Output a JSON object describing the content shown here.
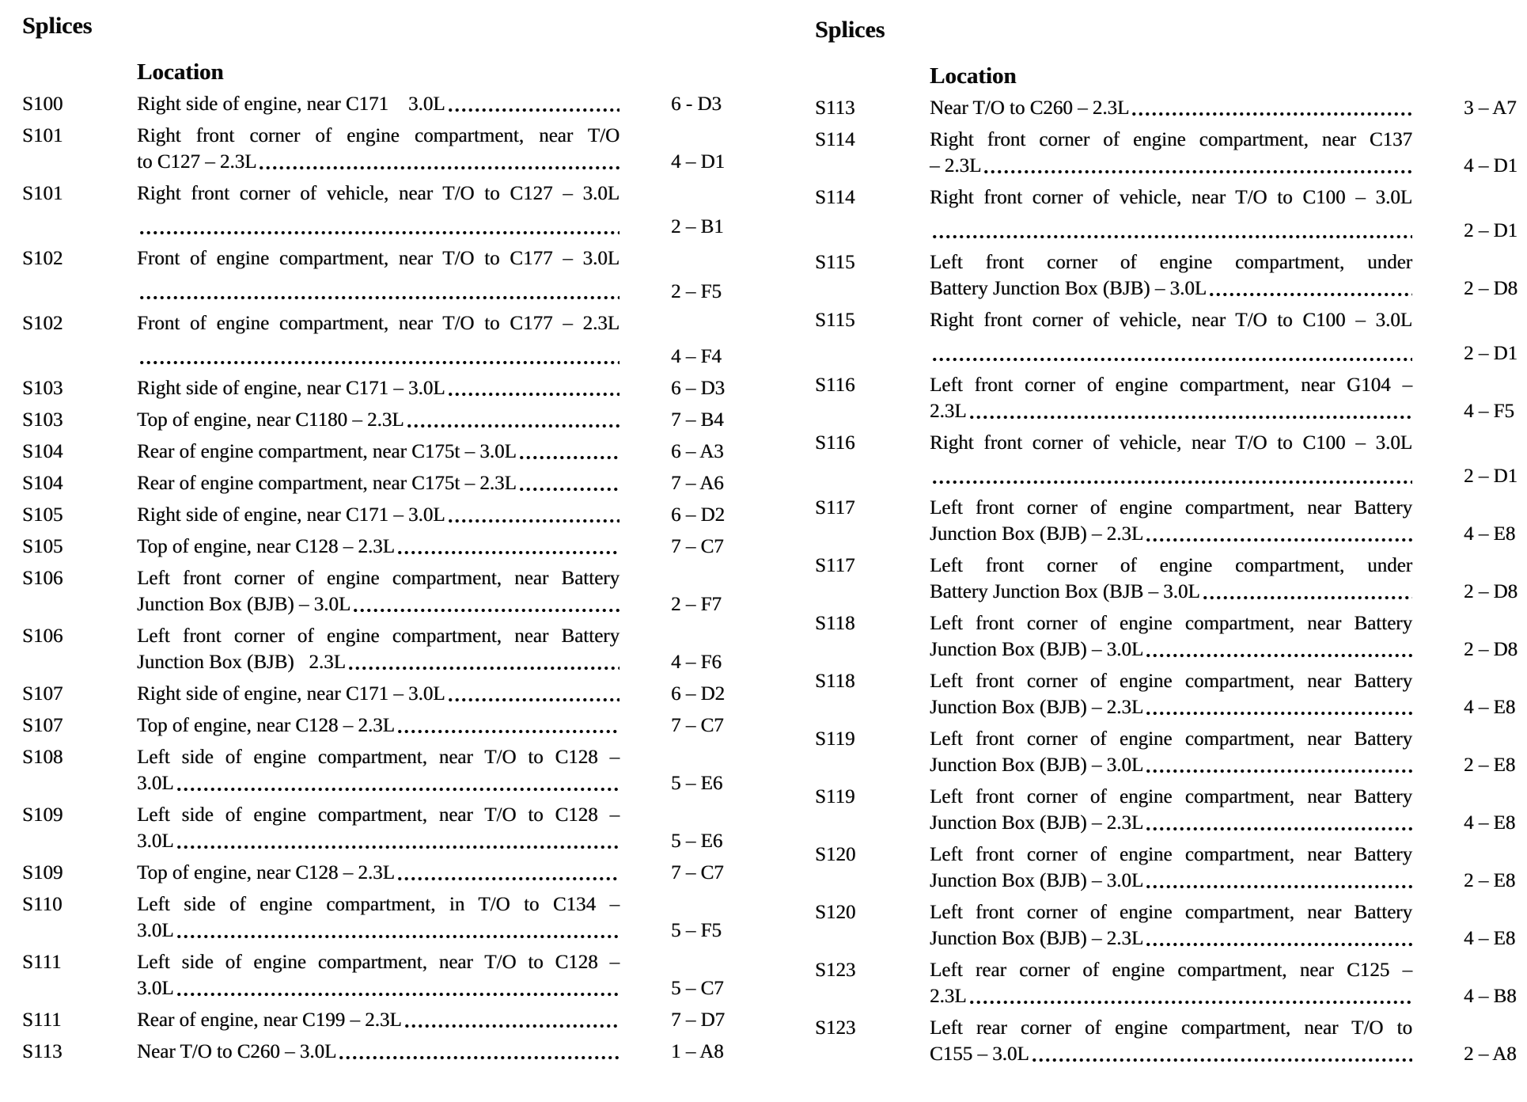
{
  "page": {
    "background": "#ffffff",
    "text_color": "#0a0a0a",
    "columns": [
      {
        "title": "Splices",
        "location_header": "Location",
        "rows": [
          {
            "id": "S100",
            "lines": [
              "Right side of engine, near C171    3.0L"
            ],
            "ref": "6 - D3"
          },
          {
            "id": "S101",
            "lines": [
              "Right front corner of engine compartment, near T/O",
              "to C127 – 2.3L"
            ],
            "ref": "4 – D1"
          },
          {
            "id": "S101",
            "lines": [
              "Right front corner of vehicle, near T/O to C127 – 3.0L",
              ""
            ],
            "ref": "2 – B1"
          },
          {
            "id": "S102",
            "lines": [
              "Front of engine compartment, near T/O to C177 – 3.0L",
              ""
            ],
            "ref": "2 – F5"
          },
          {
            "id": "S102",
            "lines": [
              "Front of engine compartment, near T/O to C177 – 2.3L",
              ""
            ],
            "ref": "4 – F4"
          },
          {
            "id": "S103",
            "lines": [
              "Right side of engine, near C171 – 3.0L"
            ],
            "ref": "6 – D3"
          },
          {
            "id": "S103",
            "lines": [
              "Top of engine, near C1180 – 2.3L"
            ],
            "ref": "7 – B4"
          },
          {
            "id": "S104",
            "lines": [
              "Rear of engine compartment, near C175t – 3.0L"
            ],
            "ref": "6 – A3"
          },
          {
            "id": "S104",
            "lines": [
              "Rear of engine compartment, near C175t – 2.3L"
            ],
            "ref": "7 – A6"
          },
          {
            "id": "S105",
            "lines": [
              "Right side of engine, near C171 – 3.0L"
            ],
            "ref": "6 – D2"
          },
          {
            "id": "S105",
            "lines": [
              "Top of engine, near C128 – 2.3L"
            ],
            "ref": "7 – C7"
          },
          {
            "id": "S106",
            "lines": [
              "Left front corner of engine compartment, near Battery",
              "Junction Box (BJB) – 3.0L"
            ],
            "ref": "2 – F7"
          },
          {
            "id": "S106",
            "lines": [
              "Left front corner of engine compartment, near Battery",
              "Junction Box (BJB)   2.3L"
            ],
            "ref": "4 – F6"
          },
          {
            "id": "S107",
            "lines": [
              "Right side of engine, near C171 – 3.0L"
            ],
            "ref": "6 – D2"
          },
          {
            "id": "S107",
            "lines": [
              "Top of engine, near C128 – 2.3L"
            ],
            "ref": "7 – C7"
          },
          {
            "id": "S108",
            "lines": [
              "Left side of engine compartment, near T/O to C128 –",
              "3.0L"
            ],
            "ref": "5 – E6"
          },
          {
            "id": "S109",
            "lines": [
              "Left side of engine compartment, near T/O to C128 –",
              "3.0L"
            ],
            "ref": "5 – E6"
          },
          {
            "id": "S109",
            "lines": [
              "Top of engine, near C128 – 2.3L"
            ],
            "ref": "7 – C7"
          },
          {
            "id": "S110",
            "lines": [
              "Left side of engine compartment, in T/O to C134 –",
              "3.0L"
            ],
            "ref": "5 – F5"
          },
          {
            "id": "S111",
            "lines": [
              "Left side of engine compartment, near T/O to C128 –",
              "3.0L"
            ],
            "ref": "5 – C7"
          },
          {
            "id": "S111",
            "lines": [
              "Rear of engine, near C199 – 2.3L"
            ],
            "ref": "7 – D7"
          },
          {
            "id": "S113",
            "lines": [
              "Near T/O to C260 – 3.0L"
            ],
            "ref": "1 – A8"
          }
        ]
      },
      {
        "title": "Splices",
        "location_header": "Location",
        "rows": [
          {
            "id": "S113",
            "lines": [
              "Near T/O to C260 – 2.3L"
            ],
            "ref": "3 – A7"
          },
          {
            "id": "S114",
            "lines": [
              "Right front corner of engine compartment, near C137",
              "– 2.3L"
            ],
            "ref": "4 – D1"
          },
          {
            "id": "S114",
            "lines": [
              "Right front corner of vehicle, near T/O to C100 – 3.0L",
              ""
            ],
            "ref": "2 – D1"
          },
          {
            "id": "S115",
            "lines": [
              "Left front corner of engine compartment, under",
              "Battery Junction Box (BJB) – 3.0L"
            ],
            "ref": "2 – D8"
          },
          {
            "id": "S115",
            "lines": [
              "Right front corner of vehicle, near T/O to C100 – 3.0L",
              ""
            ],
            "ref": "2 – D1"
          },
          {
            "id": "S116",
            "lines": [
              "Left front corner of engine compartment, near G104 –",
              "2.3L"
            ],
            "ref": "4 – F5"
          },
          {
            "id": "S116",
            "lines": [
              "Right front corner of vehicle, near T/O to C100 – 3.0L",
              ""
            ],
            "ref": "2 – D1"
          },
          {
            "id": "S117",
            "lines": [
              "Left front corner of engine compartment, near Battery",
              "Junction Box (BJB) – 2.3L"
            ],
            "ref": "4 – E8"
          },
          {
            "id": "S117",
            "lines": [
              "Left front corner of engine compartment, under",
              "Battery Junction Box (BJB – 3.0L"
            ],
            "ref": "2 – D8"
          },
          {
            "id": "S118",
            "lines": [
              "Left front corner of engine compartment, near Battery",
              "Junction Box (BJB) – 3.0L"
            ],
            "ref": "2 – D8"
          },
          {
            "id": "S118",
            "lines": [
              "Left front corner of engine compartment, near Battery",
              "Junction Box (BJB) – 2.3L"
            ],
            "ref": "4 – E8"
          },
          {
            "id": "S119",
            "lines": [
              "Left front corner of engine compartment, near Battery",
              "Junction Box (BJB) – 3.0L"
            ],
            "ref": "2 – E8"
          },
          {
            "id": "S119",
            "lines": [
              "Left front corner of engine compartment, near Battery",
              "Junction Box (BJB) – 2.3L"
            ],
            "ref": "4 – E8"
          },
          {
            "id": "S120",
            "lines": [
              "Left front corner of engine compartment, near Battery",
              "Junction Box (BJB) – 3.0L"
            ],
            "ref": "2 – E8"
          },
          {
            "id": "S120",
            "lines": [
              "Left front corner of engine compartment, near Battery",
              "Junction Box (BJB) – 2.3L"
            ],
            "ref": "4 – E8"
          },
          {
            "id": "S123",
            "lines": [
              "Left rear corner of engine compartment, near C125 –",
              "2.3L"
            ],
            "ref": "4 – B8"
          },
          {
            "id": "S123",
            "lines": [
              "Left rear corner of engine compartment, near T/O to",
              "C155 – 3.0L"
            ],
            "ref": "2 – A8"
          }
        ]
      }
    ]
  }
}
